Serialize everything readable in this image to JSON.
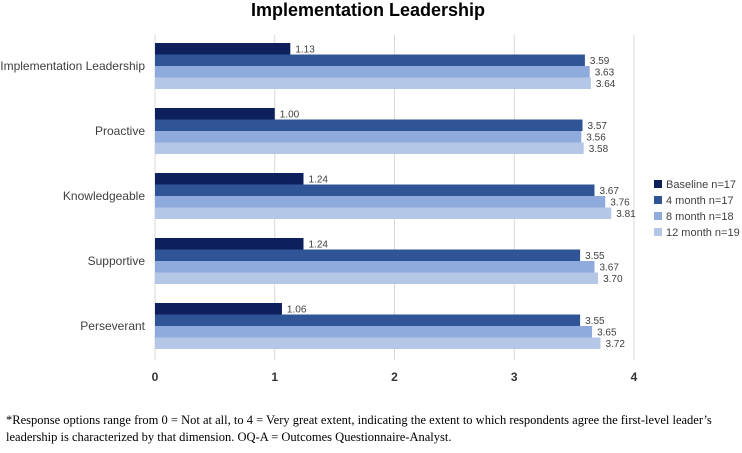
{
  "chart_data": {
    "type": "bar",
    "orientation": "horizontal",
    "title": "Implementation Leadership",
    "categories": [
      "Implementation Leadership",
      "Proactive",
      "Knowledgeable",
      "Supportive",
      "Perseverant"
    ],
    "series": [
      {
        "name": "Baseline n=17",
        "color": "#0d1f5c",
        "values": [
          1.13,
          1.0,
          1.24,
          1.24,
          1.06
        ]
      },
      {
        "name": "4 month n=17",
        "color": "#2f5597",
        "values": [
          3.59,
          3.57,
          3.67,
          3.55,
          3.55
        ]
      },
      {
        "name": "8 month n=18",
        "color": "#8faadc",
        "values": [
          3.63,
          3.56,
          3.76,
          3.67,
          3.65
        ]
      },
      {
        "name": "12 month n=19",
        "color": "#b4c7e7",
        "values": [
          3.64,
          3.58,
          3.81,
          3.7,
          3.72
        ]
      }
    ],
    "xlim": [
      0,
      4
    ],
    "xticks": [
      "0",
      "1",
      "2",
      "3",
      "4"
    ],
    "value_labels": [
      [
        "1.13",
        "1.00",
        "1.24",
        "1.24",
        "1.06"
      ],
      [
        "3.59",
        "3.57",
        "3.67",
        "3.55",
        "3.55"
      ],
      [
        "3.63",
        "3.56",
        "3.76",
        "3.67",
        "3.65"
      ],
      [
        "3.64",
        "3.58",
        "3.81",
        "3.70",
        "3.72"
      ]
    ],
    "grid": "vertical",
    "legend": "right"
  },
  "footnote": "*Response options range from 0 = Not at all, to 4 = Very great extent, indicating the extent to which respondents agree the first-level leader’s leadership is characterized by that dimension. OQ-A = Outcomes Questionnaire-Analyst."
}
